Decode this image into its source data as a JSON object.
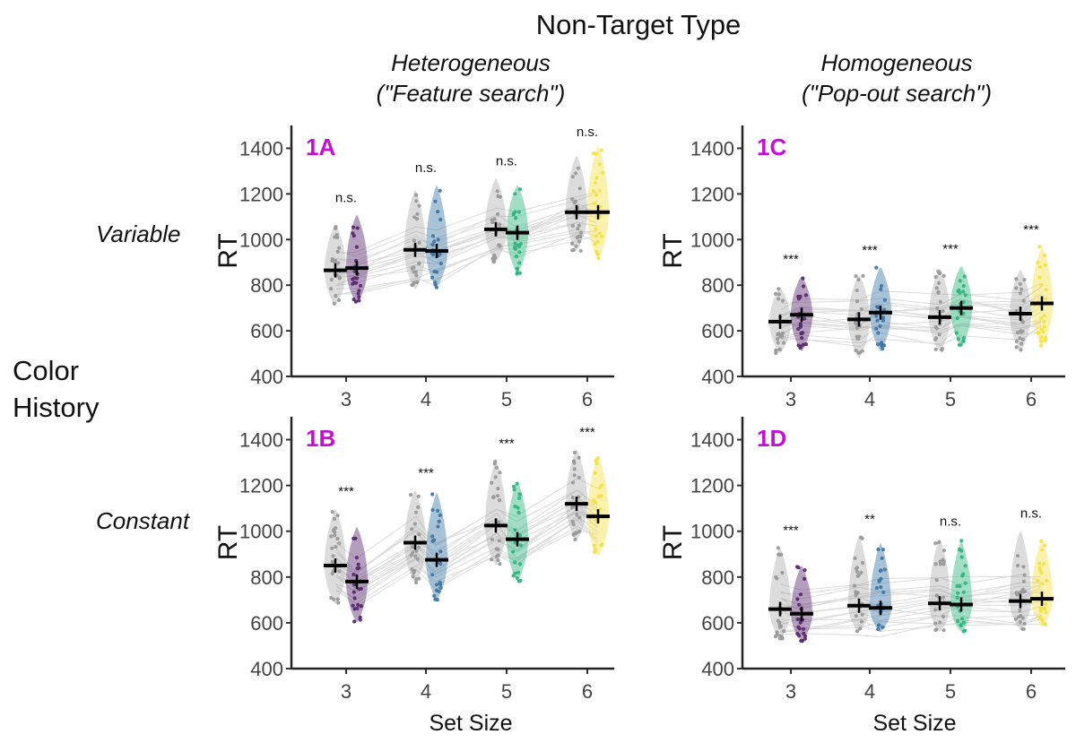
{
  "figure": {
    "title": "Non-Target Type",
    "columns": [
      "Heterogeneous",
      "(\"Feature search\")",
      "Homogeneous",
      "(\"Pop-out search\")"
    ],
    "row_title": [
      "Color",
      "History"
    ],
    "rows": [
      "Variable",
      "Constant"
    ],
    "xlabel": "Set Size",
    "ylabel": "RT"
  },
  "colors": {
    "baseline": "#9a9a9a",
    "set3": "#5b2a6e",
    "set4": "#3e77a6",
    "set5": "#2fb57f",
    "set6": "#f2e14a"
  },
  "chart_data": [
    {
      "type": "violin",
      "panel": "1A",
      "column": "Heterogeneous",
      "row": "Variable",
      "xlabel": "",
      "ylabel": "RT",
      "categories": [
        "3",
        "4",
        "5",
        "6"
      ],
      "ylim": [
        400,
        1500
      ],
      "yticks": [
        400,
        600,
        800,
        1000,
        1200,
        1400
      ],
      "series": [
        {
          "name": "gray",
          "means": [
            865,
            955,
            1045,
            1120
          ],
          "min": [
            710,
            780,
            900,
            950
          ],
          "max": [
            1070,
            1220,
            1270,
            1370
          ]
        },
        {
          "name": "colored",
          "means": [
            875,
            950,
            1030,
            1120
          ],
          "min": [
            720,
            790,
            850,
            910
          ],
          "max": [
            1110,
            1240,
            1240,
            1415
          ]
        }
      ],
      "significance": [
        "n.s.",
        "n.s.",
        "n.s.",
        "n.s."
      ]
    },
    {
      "type": "violin",
      "panel": "1B",
      "column": "Heterogeneous",
      "row": "Constant",
      "xlabel": "Set Size",
      "ylabel": "RT",
      "categories": [
        "3",
        "4",
        "5",
        "6"
      ],
      "ylim": [
        400,
        1500
      ],
      "yticks": [
        400,
        600,
        800,
        1000,
        1200,
        1400
      ],
      "series": [
        {
          "name": "gray",
          "means": [
            850,
            950,
            1025,
            1120
          ],
          "min": [
            680,
            770,
            850,
            960
          ],
          "max": [
            1100,
            1180,
            1310,
            1360
          ]
        },
        {
          "name": "colored",
          "means": [
            780,
            875,
            965,
            1065
          ],
          "min": [
            600,
            700,
            780,
            890
          ],
          "max": [
            1020,
            1170,
            1220,
            1330
          ]
        }
      ],
      "significance": [
        "***",
        "***",
        "***",
        "***"
      ]
    },
    {
      "type": "violin",
      "panel": "1C",
      "column": "Homogeneous",
      "row": "Variable",
      "xlabel": "",
      "ylabel": "RT",
      "categories": [
        "3",
        "4",
        "5",
        "6"
      ],
      "ylim": [
        400,
        1500
      ],
      "yticks": [
        400,
        600,
        800,
        1000,
        1200,
        1400
      ],
      "series": [
        {
          "name": "gray",
          "means": [
            640,
            650,
            660,
            675
          ],
          "min": [
            500,
            480,
            510,
            510
          ],
          "max": [
            790,
            845,
            875,
            870
          ]
        },
        {
          "name": "colored",
          "means": [
            670,
            680,
            700,
            720
          ],
          "min": [
            510,
            510,
            530,
            530
          ],
          "max": [
            840,
            880,
            885,
            970
          ]
        }
      ],
      "significance": [
        "***",
        "***",
        "***",
        "***"
      ]
    },
    {
      "type": "violin",
      "panel": "1D",
      "column": "Homogeneous",
      "row": "Constant",
      "xlabel": "Set Size",
      "ylabel": "RT",
      "categories": [
        "3",
        "4",
        "5",
        "6"
      ],
      "ylim": [
        400,
        1500
      ],
      "yticks": [
        400,
        600,
        800,
        1000,
        1200,
        1400
      ],
      "series": [
        {
          "name": "gray",
          "means": [
            660,
            675,
            685,
            695
          ],
          "min": [
            530,
            560,
            560,
            570
          ],
          "max": [
            930,
            980,
            970,
            1005
          ]
        },
        {
          "name": "colored",
          "means": [
            640,
            665,
            680,
            705
          ],
          "min": [
            520,
            560,
            560,
            580
          ],
          "max": [
            850,
            950,
            960,
            965
          ]
        }
      ],
      "significance": [
        "***",
        "**",
        "n.s.",
        "n.s."
      ]
    }
  ]
}
